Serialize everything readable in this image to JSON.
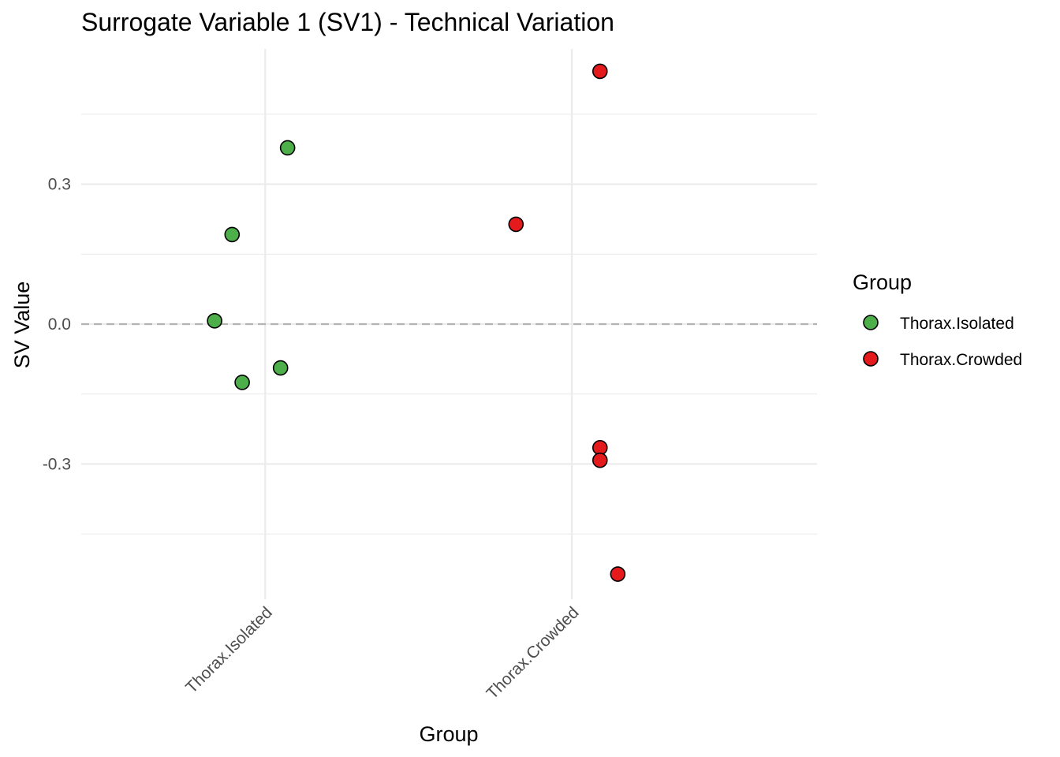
{
  "chart_data": {
    "type": "scatter",
    "title": "Surrogate Variable 1 (SV1) - Technical Variation",
    "xlabel": "Group",
    "ylabel": "SV Value",
    "categories": [
      "Thorax.Isolated",
      "Thorax.Crowded"
    ],
    "ylim": [
      -0.59,
      0.59
    ],
    "yticks": [
      -0.3,
      0.0,
      0.3
    ],
    "ytick_labels": [
      "-0.3",
      "0.0",
      "0.3"
    ],
    "reference_line": {
      "y": 0,
      "style": "dashed"
    },
    "grid": true,
    "legend": {
      "title": "Group",
      "placement": "right",
      "entries": [
        "Thorax.Isolated",
        "Thorax.Crowded"
      ]
    },
    "series": [
      {
        "name": "Thorax.Isolated",
        "color": "#4DAF4A",
        "points": [
          {
            "x": "Thorax.Isolated",
            "jitter": 0.073,
            "y": 0.378
          },
          {
            "x": "Thorax.Isolated",
            "jitter": -0.108,
            "y": 0.192
          },
          {
            "x": "Thorax.Isolated",
            "jitter": -0.165,
            "y": 0.007
          },
          {
            "x": "Thorax.Isolated",
            "jitter": 0.05,
            "y": -0.094
          },
          {
            "x": "Thorax.Isolated",
            "jitter": -0.075,
            "y": -0.125
          }
        ]
      },
      {
        "name": "Thorax.Crowded",
        "color": "#E41A1C",
        "points": [
          {
            "x": "Thorax.Crowded",
            "jitter": 0.092,
            "y": 0.542
          },
          {
            "x": "Thorax.Crowded",
            "jitter": -0.182,
            "y": 0.214
          },
          {
            "x": "Thorax.Crowded",
            "jitter": 0.092,
            "y": -0.265
          },
          {
            "x": "Thorax.Crowded",
            "jitter": 0.092,
            "y": -0.292
          },
          {
            "x": "Thorax.Crowded",
            "jitter": 0.15,
            "y": -0.536
          }
        ]
      }
    ]
  }
}
